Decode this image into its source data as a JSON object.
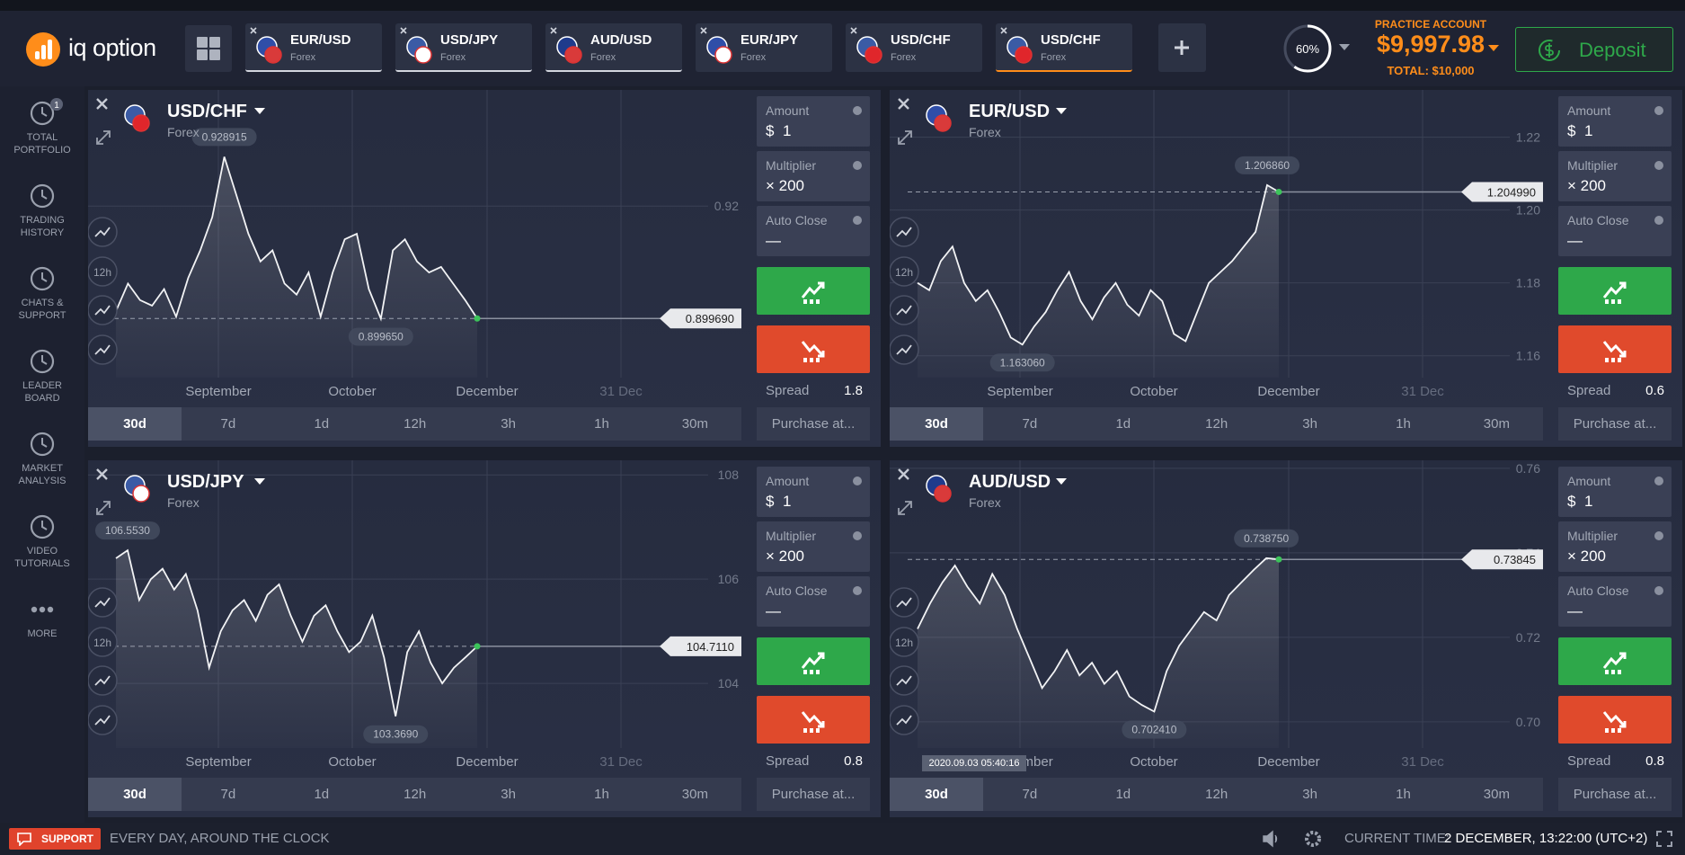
{
  "header": {
    "logo": "iq option",
    "tabs": [
      {
        "pair": "EUR/USD",
        "market": "Forex",
        "flags": [
          "#2f4ea8",
          "#d93a3a"
        ],
        "underline": "#d3d6de"
      },
      {
        "pair": "USD/JPY",
        "market": "Forex",
        "flags": [
          "#3b5ba5",
          "#ffffff"
        ],
        "underline": "#d3d6de"
      },
      {
        "pair": "AUD/USD",
        "market": "Forex",
        "flags": [
          "#1f3b8c",
          "#d93a3a"
        ],
        "underline": "#d3d6de"
      },
      {
        "pair": "EUR/JPY",
        "market": "Forex",
        "flags": [
          "#2f4ea8",
          "#ffffff"
        ]
      },
      {
        "pair": "USD/CHF",
        "market": "Forex",
        "flags": [
          "#3b5ba5",
          "#e0262b"
        ]
      },
      {
        "pair": "USD/CHF",
        "market": "Forex",
        "flags": [
          "#3b5ba5",
          "#e0262b"
        ],
        "underline": "#ff8d1a"
      }
    ],
    "progress": "60%",
    "account_type": "PRACTICE ACCOUNT",
    "balance": "$9,997.98",
    "total": "TOTAL: $10,000",
    "deposit": "Deposit"
  },
  "sidebar": [
    {
      "label": "TOTAL PORTFOLIO",
      "badge": "1"
    },
    {
      "label": "TRADING HISTORY"
    },
    {
      "label": "CHATS & SUPPORT"
    },
    {
      "label": "LEADER BOARD"
    },
    {
      "label": "MARKET ANALYSIS"
    },
    {
      "label": "VIDEO TUTORIALS"
    },
    {
      "label": "MORE"
    }
  ],
  "labels": {
    "amount": "Amount",
    "currency": "$",
    "multiplier": "Multiplier",
    "auto_close": "Auto Close",
    "spread": "Spread",
    "purchase": "Purchase at...",
    "tool": "12h"
  },
  "periods": [
    "30d",
    "7d",
    "1d",
    "12h",
    "3h",
    "1h",
    "30m"
  ],
  "active_period": "30d",
  "panels": [
    {
      "pair": "USD/CHF",
      "market": "Forex",
      "flags": [
        "#3b5ba5",
        "#e0262b"
      ],
      "ylim": [
        0.889,
        0.941
      ],
      "yticks": [
        0.92
      ],
      "x_labels": [
        "September",
        "October",
        "December",
        "31 Dec"
      ],
      "prices": [
        0.901,
        0.906,
        0.903,
        0.902,
        0.905,
        0.9,
        0.907,
        0.912,
        0.918,
        0.928915,
        0.922,
        0.915,
        0.91,
        0.912,
        0.906,
        0.904,
        0.908,
        0.9,
        0.908,
        0.914,
        0.915,
        0.905,
        0.89965,
        0.912,
        0.914,
        0.91,
        0.908,
        0.909,
        0.906,
        0.903,
        0.89969
      ],
      "high": "0.928915",
      "low": "0.899650",
      "current": "0.899690",
      "amount": "1",
      "multiplier": "× 200",
      "auto_close": "—",
      "spread": 1.8
    },
    {
      "pair": "EUR/USD",
      "market": "Forex",
      "flags": [
        "#2f4ea8",
        "#d93a3a"
      ],
      "ylim": [
        1.154,
        1.233
      ],
      "yticks": [
        1.22,
        {
          "value": 1.2,
          "label": "1.20"
        },
        1.18,
        1.16
      ],
      "x_labels": [
        "September",
        "October",
        "December",
        "31 Dec"
      ],
      "prices": [
        1.18,
        1.178,
        1.186,
        1.19,
        1.18,
        1.175,
        1.178,
        1.172,
        1.165,
        1.16306,
        1.168,
        1.172,
        1.178,
        1.183,
        1.175,
        1.17,
        1.176,
        1.18,
        1.174,
        1.171,
        1.178,
        1.175,
        1.166,
        1.164,
        1.172,
        1.18,
        1.183,
        1.186,
        1.19,
        1.194,
        1.20686,
        1.20499
      ],
      "high": "1.206860",
      "low": "1.163060",
      "current": "1.204990",
      "amount": "1",
      "multiplier": "× 200",
      "auto_close": "—",
      "spread": 0.6
    },
    {
      "pair": "USD/JPY",
      "market": "Forex",
      "flags": [
        "#3b5ba5",
        "#ffffff"
      ],
      "ylim": [
        102.76,
        108.28
      ],
      "yticks": [
        108,
        106,
        104
      ],
      "x_labels": [
        "September",
        "October",
        "December",
        "31 Dec"
      ],
      "prices": [
        106.4,
        106.553,
        105.6,
        106.0,
        106.2,
        105.8,
        106.1,
        105.4,
        104.3,
        105.0,
        105.4,
        105.6,
        105.2,
        105.7,
        105.9,
        105.3,
        104.8,
        105.3,
        105.5,
        105.0,
        104.6,
        104.8,
        105.3,
        104.5,
        103.369,
        104.6,
        105.0,
        104.4,
        104.0,
        104.3,
        104.5,
        104.711
      ],
      "high": "106.5530",
      "low": "103.3690",
      "current": "104.7110",
      "amount": "1",
      "multiplier": "× 200",
      "auto_close": "—",
      "spread": 0.8
    },
    {
      "pair": "AUD/USD",
      "market": "Forex",
      "flags": [
        "#1f3b8c",
        "#d93a3a"
      ],
      "ylim": [
        0.6938,
        0.7619
      ],
      "yticks": [
        0.76,
        0.74,
        0.72,
        {
          "value": 0.7,
          "label": "0.70"
        }
      ],
      "x_labels": [
        "September",
        "October",
        "December",
        "31 Dec"
      ],
      "prices": [
        0.722,
        0.728,
        0.733,
        0.737,
        0.732,
        0.728,
        0.735,
        0.73,
        0.722,
        0.715,
        0.708,
        0.712,
        0.717,
        0.711,
        0.714,
        0.709,
        0.712,
        0.706,
        0.704,
        0.70241,
        0.712,
        0.718,
        0.722,
        0.726,
        0.724,
        0.73,
        0.733,
        0.736,
        0.73875,
        0.73845
      ],
      "high": "0.738750",
      "low": "0.702410",
      "current": "0.73845",
      "tooltip": "2020.09.03 05:40:16",
      "amount": "1",
      "multiplier": "× 200",
      "auto_close": "—",
      "spread": 0.8
    }
  ],
  "footer": {
    "support": "SUPPORT",
    "message": "EVERY DAY, AROUND THE CLOCK",
    "time_label": "CURRENT TIME:",
    "time": "2 DECEMBER, 13:22:00 (UTC+2)"
  }
}
